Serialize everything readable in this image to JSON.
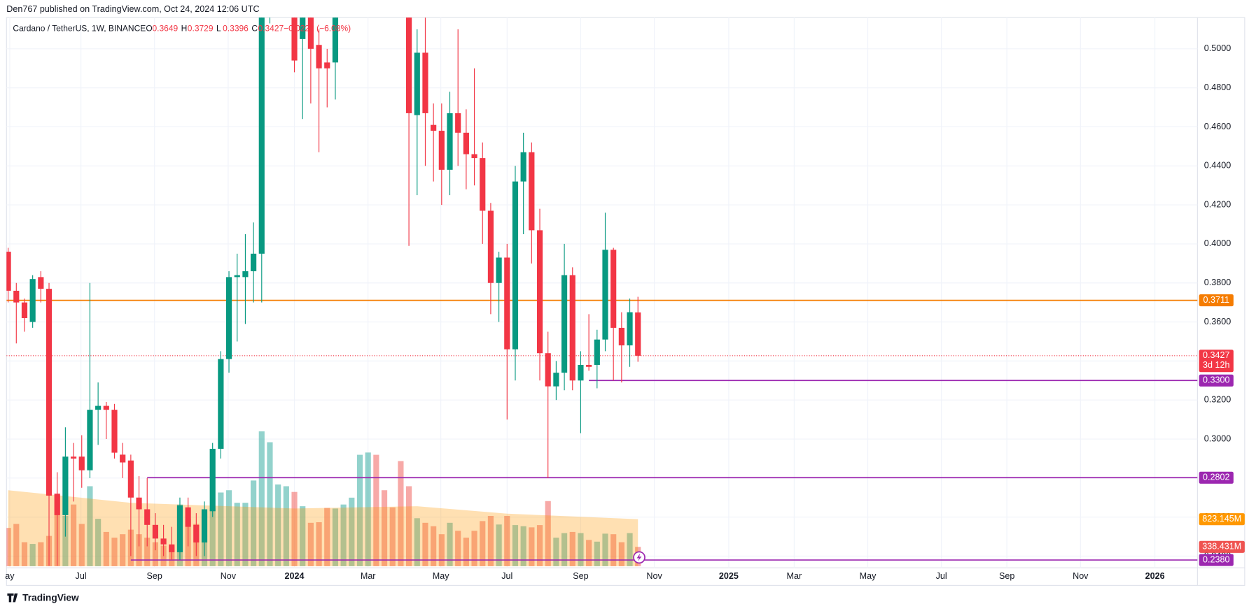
{
  "header": {
    "published": "Den767 published on TradingView.com, Oct 24, 2024 12:06 UTC",
    "footer": "TradingView"
  },
  "chart_data": {
    "type": "candlestick",
    "symbol": "Cardano / TetherUS, 1W, BINANCE",
    "legend_keys": [
      "O",
      "H",
      "L",
      "C"
    ],
    "change_label": "−0.0222 (−6.08%)",
    "countdown": "3d 12h",
    "up_color": "#089981",
    "down_color": "#f23645",
    "x": [
      0,
      1,
      2,
      3,
      4,
      5,
      6,
      7,
      8,
      9,
      10,
      11,
      12,
      13,
      14,
      15,
      16,
      17,
      18,
      19,
      20,
      21,
      22,
      23,
      24,
      25,
      26,
      27,
      28,
      29,
      30,
      31,
      32,
      35,
      36,
      37,
      38,
      39,
      40,
      49,
      50,
      51,
      52,
      53,
      54,
      55,
      56,
      57,
      58,
      59,
      60,
      61,
      62,
      63,
      64,
      65,
      66,
      67,
      68,
      69,
      70,
      71,
      72,
      73,
      74,
      75,
      76,
      77
    ],
    "open": [
      0.396,
      0.376,
      0.37,
      0.36,
      0.383,
      0.377,
      0.272,
      0.261,
      0.291,
      0.291,
      0.284,
      0.315,
      0.317,
      0.315,
      0.292,
      0.289,
      0.27,
      0.264,
      0.256,
      0.249,
      0.246,
      0.242,
      0.265,
      0.256,
      0.247,
      0.263,
      0.295,
      0.341,
      0.383,
      0.383,
      0.386,
      0.395,
      0.53,
      0.53,
      0.505,
      0.52,
      0.502,
      0.493,
      0.493,
      0.52,
      0.466,
      0.498,
      0.461,
      0.458,
      0.438,
      0.467,
      0.457,
      0.446,
      0.444,
      0.417,
      0.38,
      0.393,
      0.346,
      0.432,
      0.447,
      0.407,
      0.344,
      0.327,
      0.334,
      0.384,
      0.33,
      0.338,
      0.338,
      0.351,
      0.397,
      0.357,
      0.348,
      0.3649
    ],
    "high": [
      0.398,
      0.38,
      0.372,
      0.384,
      0.386,
      0.38,
      0.283,
      0.306,
      0.298,
      0.302,
      0.38,
      0.329,
      0.319,
      0.318,
      0.298,
      0.292,
      0.281,
      0.28,
      0.262,
      0.256,
      0.255,
      0.27,
      0.27,
      0.262,
      0.268,
      0.298,
      0.345,
      0.386,
      0.395,
      0.405,
      0.411,
      0.583,
      0.58,
      0.56,
      0.55,
      0.53,
      0.51,
      0.5,
      0.53,
      0.55,
      0.51,
      0.516,
      0.472,
      0.472,
      0.478,
      0.51,
      0.469,
      0.49,
      0.452,
      0.421,
      0.396,
      0.4,
      0.44,
      0.457,
      0.452,
      0.418,
      0.355,
      0.34,
      0.4,
      0.388,
      0.345,
      0.364,
      0.356,
      0.416,
      0.398,
      0.365,
      0.372,
      0.3729
    ],
    "low": [
      0.37,
      0.349,
      0.355,
      0.357,
      0.37,
      0.235,
      0.235,
      0.25,
      0.268,
      0.275,
      0.28,
      0.297,
      0.3,
      0.29,
      0.28,
      0.24,
      0.245,
      0.245,
      0.243,
      0.24,
      0.238,
      0.238,
      0.245,
      0.24,
      0.24,
      0.26,
      0.29,
      0.334,
      0.35,
      0.359,
      0.37,
      0.37,
      0.513,
      0.488,
      0.464,
      0.472,
      0.447,
      0.47,
      0.474,
      0.399,
      0.425,
      0.44,
      0.432,
      0.42,
      0.425,
      0.44,
      0.428,
      0.43,
      0.4,
      0.364,
      0.36,
      0.31,
      0.33,
      0.405,
      0.39,
      0.33,
      0.28,
      0.32,
      0.325,
      0.325,
      0.303,
      0.335,
      0.326,
      0.345,
      0.33,
      0.329,
      0.337,
      0.3396
    ],
    "close": [
      0.376,
      0.37,
      0.362,
      0.382,
      0.377,
      0.271,
      0.261,
      0.291,
      0.29,
      0.284,
      0.315,
      0.317,
      0.315,
      0.293,
      0.288,
      0.27,
      0.264,
      0.256,
      0.249,
      0.246,
      0.242,
      0.266,
      0.255,
      0.247,
      0.264,
      0.295,
      0.341,
      0.383,
      0.384,
      0.386,
      0.395,
      0.555,
      0.56,
      0.494,
      0.53,
      0.5,
      0.49,
      0.49,
      0.52,
      0.467,
      0.498,
      0.467,
      0.458,
      0.438,
      0.467,
      0.457,
      0.446,
      0.444,
      0.417,
      0.38,
      0.393,
      0.346,
      0.432,
      0.447,
      0.407,
      0.344,
      0.327,
      0.334,
      0.384,
      0.33,
      0.338,
      0.337,
      0.351,
      0.397,
      0.357,
      0.348,
      0.365,
      0.3427
    ],
    "xlim": [
      -0.2,
      145.4
    ],
    "xticks": [
      {
        "value": 0.2,
        "label": "ay"
      },
      {
        "value": 8.9,
        "label": "Jul"
      },
      {
        "value": 17.9,
        "label": "Sep"
      },
      {
        "value": 26.9,
        "label": "Nov"
      },
      {
        "value": 35,
        "label": "2024"
      },
      {
        "value": 44,
        "label": "Mar"
      },
      {
        "value": 52.9,
        "label": "May"
      },
      {
        "value": 61,
        "label": "Jul"
      },
      {
        "value": 70,
        "label": "Sep"
      },
      {
        "value": 79,
        "label": "Nov"
      },
      {
        "value": 88.1,
        "label": "2025"
      },
      {
        "value": 96.1,
        "label": "Mar"
      },
      {
        "value": 105.1,
        "label": "May"
      },
      {
        "value": 114.1,
        "label": "Jul"
      },
      {
        "value": 122.1,
        "label": "Sep"
      },
      {
        "value": 131.1,
        "label": "Nov"
      },
      {
        "value": 140.2,
        "label": "2026"
      }
    ],
    "ylim": [
      0.234,
      0.516
    ],
    "yticks": [
      {
        "value": 0.5,
        "label": "0.5000"
      },
      {
        "value": 0.48,
        "label": "0.4800"
      },
      {
        "value": 0.46,
        "label": "0.4600"
      },
      {
        "value": 0.44,
        "label": "0.4400"
      },
      {
        "value": 0.42,
        "label": "0.4200"
      },
      {
        "value": 0.4,
        "label": "0.4000"
      },
      {
        "value": 0.38,
        "label": "0.3800"
      },
      {
        "value": 0.36,
        "label": "0.3600"
      },
      {
        "value": 0.34,
        "label": "0.3400"
      },
      {
        "value": 0.32,
        "label": "0.3200"
      },
      {
        "value": 0.3,
        "label": "0.3000"
      },
      {
        "value": 0.28,
        "label": "0.2800"
      },
      {
        "value": 0.26,
        "label": "0.2600"
      },
      {
        "value": 0.24,
        "label": "0.2400"
      }
    ],
    "grid": true,
    "levels": [
      {
        "value": 0.3711,
        "label": "0.3711",
        "color": "#f57c00"
      },
      {
        "value": 0.33,
        "label": "0.3300",
        "color": "#9c27b0",
        "x_start": 71
      },
      {
        "value": 0.2802,
        "label": "0.2802",
        "color": "#9c27b0",
        "x_start": 17
      },
      {
        "value": 0.238,
        "label": "0.2380",
        "color": "#9c27b0",
        "x_start": 15
      }
    ],
    "volume": {
      "ylim": [
        0,
        9630
      ],
      "x": [
        0,
        1,
        2,
        3,
        4,
        5,
        6,
        7,
        8,
        9,
        10,
        11,
        12,
        13,
        14,
        15,
        16,
        17,
        18,
        19,
        20,
        21,
        22,
        23,
        24,
        25,
        26,
        27,
        28,
        29,
        30,
        31,
        32,
        33,
        34,
        35,
        36,
        37,
        38,
        39,
        40,
        41,
        42,
        43,
        44,
        45,
        46,
        47,
        48,
        49,
        50,
        51,
        52,
        53,
        54,
        55,
        56,
        57,
        58,
        59,
        60,
        61,
        62,
        63,
        64,
        65,
        66,
        67,
        68,
        69,
        70,
        71,
        72,
        73,
        74,
        75,
        76,
        77
      ],
      "values": [
        670,
        740,
        420,
        390,
        420,
        530,
        1250,
        880,
        1080,
        740,
        1400,
        830,
        600,
        500,
        560,
        640,
        560,
        500,
        420,
        360,
        350,
        1080,
        830,
        740,
        970,
        1010,
        1290,
        1330,
        1110,
        1110,
        1500,
        2360,
        2170,
        1430,
        1400,
        1300,
        1050,
        760,
        770,
        1020,
        1010,
        1080,
        1200,
        1950,
        1990,
        1950,
        1330,
        1030,
        1840,
        1400,
        840,
        760,
        700,
        560,
        760,
        620,
        500,
        620,
        790,
        880,
        730,
        880,
        720,
        700,
        680,
        720,
        1140,
        500,
        580,
        600,
        580,
        460,
        430,
        570,
        560,
        420,
        580,
        338.431
      ],
      "colors": [
        "#ef5350",
        "#ef5350",
        "#ef5350",
        "#26a69a",
        "#ef5350",
        "#ef5350",
        "#ef5350",
        "#26a69a",
        "#ef5350",
        "#ef5350",
        "#26a69a",
        "#26a69a",
        "#ef5350",
        "#ef5350",
        "#ef5350",
        "#ef5350",
        "#ef5350",
        "#ef5350",
        "#ef5350",
        "#ef5350",
        "#ef5350",
        "#26a69a",
        "#ef5350",
        "#ef5350",
        "#26a69a",
        "#26a69a",
        "#26a69a",
        "#26a69a",
        "#26a69a",
        "#26a69a",
        "#26a69a",
        "#26a69a",
        "#26a69a",
        "#26a69a",
        "#26a69a",
        "#ef5350",
        "#26a69a",
        "#ef5350",
        "#ef5350",
        "#ef5350",
        "#26a69a",
        "#26a69a",
        "#26a69a",
        "#26a69a",
        "#26a69a",
        "#ef5350",
        "#ef5350",
        "#ef5350",
        "#ef5350",
        "#ef5350",
        "#26a69a",
        "#ef5350",
        "#ef5350",
        "#ef5350",
        "#26a69a",
        "#ef5350",
        "#ef5350",
        "#ef5350",
        "#ef5350",
        "#ef5350",
        "#26a69a",
        "#ef5350",
        "#26a69a",
        "#26a69a",
        "#ef5350",
        "#ef5350",
        "#ef5350",
        "#26a69a",
        "#26a69a",
        "#ef5350",
        "#26a69a",
        "#ef5350",
        "#26a69a",
        "#26a69a",
        "#ef5350",
        "#ef5350",
        "#26a69a",
        "#ef5350"
      ],
      "last_value_label": "338.431M"
    },
    "volume_ma": {
      "x": [
        0,
        15,
        35,
        50,
        61,
        77
      ],
      "values": [
        1330,
        1110,
        1010,
        1050,
        920,
        823.145
      ],
      "color": "#ff9800",
      "last_value_label": "823.145M"
    }
  }
}
